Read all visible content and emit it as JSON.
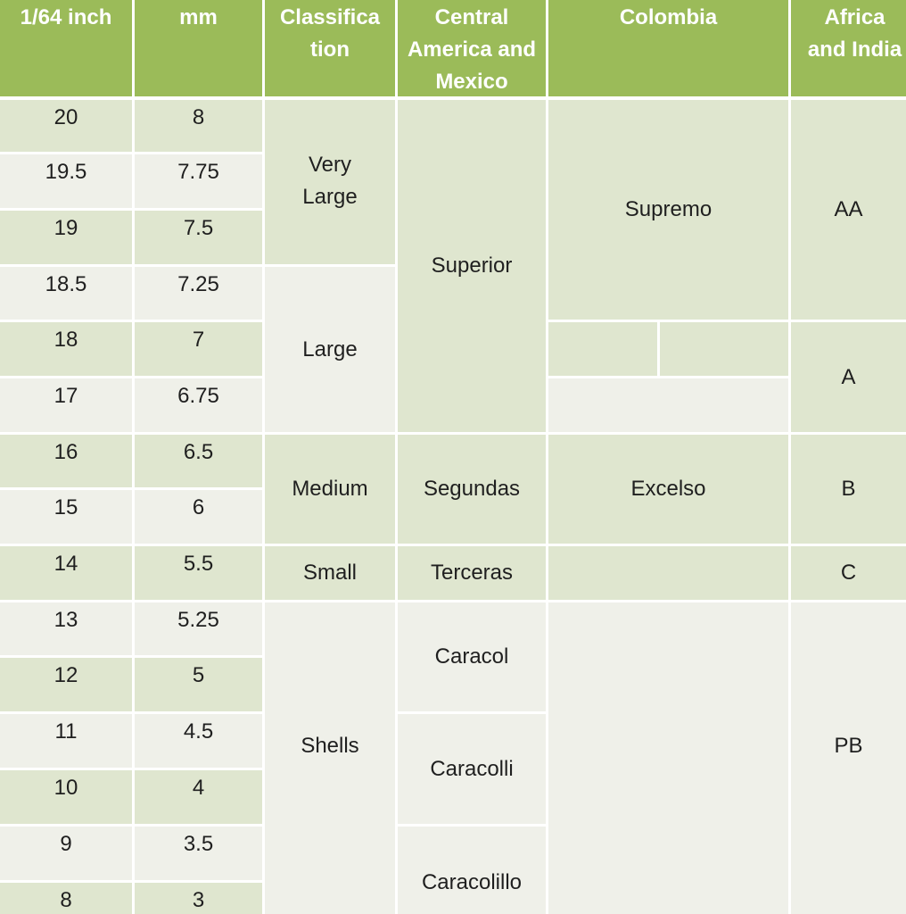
{
  "headers": {
    "inch": "1/64 inch",
    "mm": "mm",
    "classification": "Classifica tion",
    "central": "Central America and Mexico",
    "colombia": "Colombia",
    "africa": "Africa and India"
  },
  "rows": [
    {
      "inch": "20",
      "mm": "8"
    },
    {
      "inch": "19.5",
      "mm": "7.75"
    },
    {
      "inch": "19",
      "mm": "7.5"
    },
    {
      "inch": "18.5",
      "mm": "7.25"
    },
    {
      "inch": "18",
      "mm": "7"
    },
    {
      "inch": "17",
      "mm": "6.75"
    },
    {
      "inch": "16",
      "mm": "6.5"
    },
    {
      "inch": "15",
      "mm": "6"
    },
    {
      "inch": "14",
      "mm": "5.5"
    },
    {
      "inch": "13",
      "mm": "5.25"
    },
    {
      "inch": "12",
      "mm": "5"
    },
    {
      "inch": "11",
      "mm": "4.5"
    },
    {
      "inch": "10",
      "mm": "4"
    },
    {
      "inch": "9",
      "mm": "3.5"
    },
    {
      "inch": "8",
      "mm": "3"
    }
  ],
  "classification": {
    "very_large": "Very Large",
    "large": "Large",
    "medium": "Medium",
    "small": "Small",
    "shells": "Shells"
  },
  "central_america": {
    "superior": "Superior",
    "segundas": "Segundas",
    "terceras": "Terceras",
    "caracol": "Caracol",
    "caracolli": "Caracolli",
    "caracolillo": "Caracolillo"
  },
  "colombia": {
    "supremo": "Supremo",
    "excelso": "Excelso"
  },
  "africa_india": {
    "aa": "AA",
    "a": "A",
    "b": "B",
    "c": "C",
    "pb": "PB"
  }
}
